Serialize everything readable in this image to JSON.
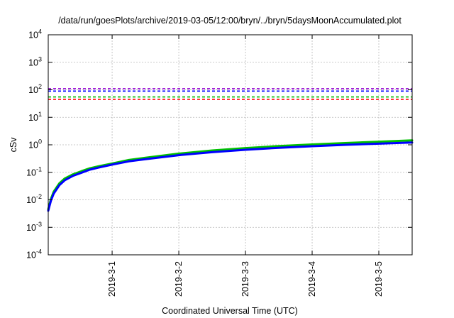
{
  "chart_data": {
    "type": "line",
    "title": "/data/run/goesPlots/archive/2019-03-05/12:00/bryn/../bryn/5daysMoonAccumulated.plot",
    "xlabel": "Coordinated Universal Time (UTC)",
    "ylabel": "cSv",
    "yscale": "log",
    "ylim": [
      0.0001,
      10000
    ],
    "xlim": [
      "2019-02-28 01:00",
      "2019-03-05 12:00"
    ],
    "grid": true,
    "y_ticks": [
      {
        "value": 0.0001,
        "base": "10",
        "exp": "-4"
      },
      {
        "value": 0.001,
        "base": "10",
        "exp": "-3"
      },
      {
        "value": 0.01,
        "base": "10",
        "exp": "-2"
      },
      {
        "value": 0.1,
        "base": "10",
        "exp": "-1"
      },
      {
        "value": 1,
        "base": "10",
        "exp": "0"
      },
      {
        "value": 10,
        "base": "10",
        "exp": "1"
      },
      {
        "value": 100,
        "base": "10",
        "exp": "2"
      },
      {
        "value": 1000,
        "base": "10",
        "exp": "3"
      },
      {
        "value": 10000,
        "base": "10",
        "exp": "4"
      }
    ],
    "x_ticks": [
      {
        "value": "2019-03-01 00:00",
        "label": "2019-3-1"
      },
      {
        "value": "2019-03-02 00:00",
        "label": "2019-3-2"
      },
      {
        "value": "2019-03-03 00:00",
        "label": "2019-3-3"
      },
      {
        "value": "2019-03-04 00:00",
        "label": "2019-3-4"
      },
      {
        "value": "2019-03-05 00:00",
        "label": "2019-3-5"
      }
    ],
    "reference_lines": [
      {
        "y": 110,
        "color": "#9400d3",
        "style": "dashed"
      },
      {
        "y": 90,
        "color": "#0000ff",
        "style": "dashed"
      },
      {
        "y": 55,
        "color": "#00c000",
        "style": "dashed"
      },
      {
        "y": 45,
        "color": "#ff0000",
        "style": "dashed"
      }
    ],
    "series": [
      {
        "color": "#00c000",
        "x": [
          "2019-02-28 01:00",
          "2019-02-28 02:00",
          "2019-02-28 03:00",
          "2019-02-28 05:00",
          "2019-02-28 07:00",
          "2019-02-28 10:00",
          "2019-02-28 13:00",
          "2019-02-28 16:00",
          "2019-02-28 19:00",
          "2019-03-01 00:00",
          "2019-03-01 06:00",
          "2019-03-01 12:00",
          "2019-03-02 00:00",
          "2019-03-02 12:00",
          "2019-03-03 00:00",
          "2019-03-03 12:00",
          "2019-03-04 00:00",
          "2019-03-04 12:00",
          "2019-03-05 00:00",
          "2019-03-05 12:00"
        ],
        "y": [
          0.0045,
          0.011,
          0.02,
          0.04,
          0.06,
          0.085,
          0.11,
          0.14,
          0.165,
          0.21,
          0.28,
          0.34,
          0.48,
          0.62,
          0.76,
          0.9,
          1.03,
          1.16,
          1.3,
          1.45
        ]
      },
      {
        "color": "#0000ff",
        "x": [
          "2019-02-28 01:00",
          "2019-02-28 02:00",
          "2019-02-28 03:00",
          "2019-02-28 05:00",
          "2019-02-28 07:00",
          "2019-02-28 10:00",
          "2019-02-28 13:00",
          "2019-02-28 16:00",
          "2019-02-28 19:00",
          "2019-03-01 00:00",
          "2019-03-01 06:00",
          "2019-03-01 12:00",
          "2019-03-02 00:00",
          "2019-03-02 12:00",
          "2019-03-03 00:00",
          "2019-03-03 12:00",
          "2019-03-04 00:00",
          "2019-03-04 12:00",
          "2019-03-05 00:00",
          "2019-03-05 12:00"
        ],
        "y": [
          0.004,
          0.0095,
          0.017,
          0.034,
          0.052,
          0.075,
          0.097,
          0.125,
          0.148,
          0.19,
          0.25,
          0.3,
          0.42,
          0.54,
          0.66,
          0.78,
          0.89,
          1.0,
          1.1,
          1.22
        ]
      }
    ]
  }
}
